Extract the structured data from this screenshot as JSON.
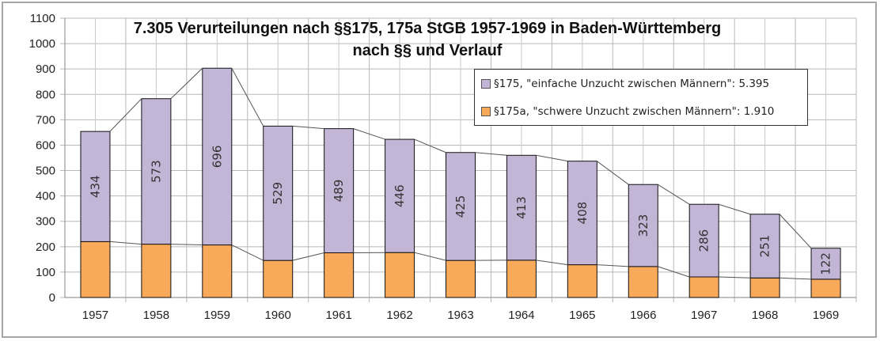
{
  "chart_data": {
    "type": "bar",
    "stacked": true,
    "title": "7.305 Verurteilungen nach §§175, 175a StGB 1957-1969 in Baden-Württemberg",
    "subtitle": "nach §§ und Verlauf",
    "xlabel": "",
    "ylabel": "",
    "ylim": [
      0,
      1100
    ],
    "yticks": [
      0,
      100,
      200,
      300,
      400,
      500,
      600,
      700,
      800,
      900,
      1000,
      1100
    ],
    "grid": true,
    "legend_position": "top-right",
    "categories": [
      "1957",
      "1958",
      "1959",
      "1960",
      "1961",
      "1962",
      "1963",
      "1964",
      "1965",
      "1966",
      "1967",
      "1968",
      "1969"
    ],
    "series": [
      {
        "name": "§175a, \"schwere Unzucht zwischen Männern\": 1.910",
        "color": "#f9a95a",
        "values": [
          220,
          210,
          207,
          146,
          176,
          177,
          146,
          147,
          129,
          122,
          81,
          77,
          72
        ],
        "data_labels": false
      },
      {
        "name": "§175, \"einfache Unzucht zwischen Männern\": 5.395",
        "color": "#c3b5d6",
        "values": [
          434,
          573,
          696,
          529,
          489,
          446,
          425,
          413,
          408,
          323,
          286,
          251,
          122
        ],
        "data_labels": true
      }
    ],
    "series_lines": true
  },
  "legend": {
    "items": [
      {
        "label": "§175, \"einfache Unzucht zwischen Männern\": 5.395",
        "color": "#c3b5d6"
      },
      {
        "label": "§175a, \"schwere Unzucht zwischen Männern\": 1.910",
        "color": "#f9a95a"
      }
    ]
  }
}
